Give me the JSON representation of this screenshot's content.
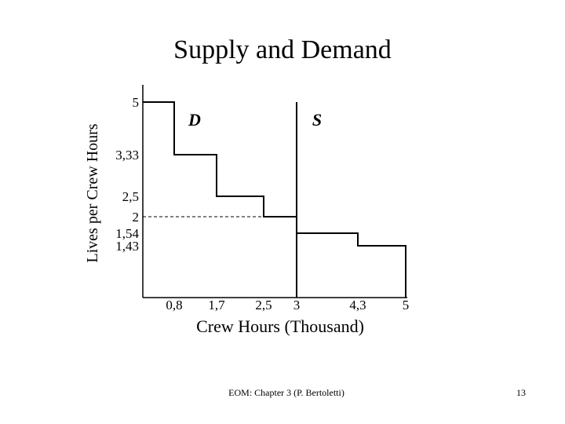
{
  "slide": {
    "footer": "EOM: Chapter 3 (P. Bertoletti)",
    "page_number": "13"
  },
  "chart_data": {
    "type": "line",
    "title": "Supply and Demand",
    "xlabel": "Crew Hours (Thousand)",
    "ylabel": "Lives per Crew Hours",
    "xlim": [
      0,
      5.0
    ],
    "ylim": [
      0,
      5.0
    ],
    "grid": false,
    "x_ticks": [
      {
        "value": 0.8,
        "label": "0,8"
      },
      {
        "value": 1.7,
        "label": "1,7"
      },
      {
        "value": 2.5,
        "label": "2,5"
      },
      {
        "value": 3.0,
        "label": "3"
      },
      {
        "value": 4.3,
        "label": "4,3"
      },
      {
        "value": 5.0,
        "label": "5"
      }
    ],
    "y_ticks": [
      {
        "value": 5.0,
        "label": "5"
      },
      {
        "value": 3.33,
        "label": "3,33"
      },
      {
        "value": 2.5,
        "label": "2,5"
      },
      {
        "value": 2.0,
        "label": "2"
      },
      {
        "value": 1.54,
        "label": "1,54"
      },
      {
        "value": 1.43,
        "label": "1,43"
      }
    ],
    "series": [
      {
        "name": "D",
        "style": "step",
        "points": [
          [
            0,
            5.0
          ],
          [
            0.8,
            5.0
          ],
          [
            0.8,
            3.33
          ],
          [
            1.7,
            3.33
          ],
          [
            1.7,
            2.5
          ],
          [
            2.5,
            2.5
          ],
          [
            2.5,
            2.0
          ],
          [
            3.0,
            2.0
          ],
          [
            3.0,
            1.54
          ],
          [
            4.3,
            1.54
          ],
          [
            4.3,
            1.43
          ],
          [
            5.0,
            1.43
          ],
          [
            5.0,
            0
          ]
        ]
      },
      {
        "name": "S",
        "style": "vertical",
        "points": [
          [
            3.0,
            0
          ],
          [
            3.0,
            5.0
          ]
        ]
      }
    ],
    "annotations": [
      {
        "type": "dashed-hline",
        "y": 2.0,
        "x_from": 0,
        "x_to": 3.0
      }
    ],
    "colors": {
      "line": "#000000",
      "axis": "#000000"
    }
  }
}
